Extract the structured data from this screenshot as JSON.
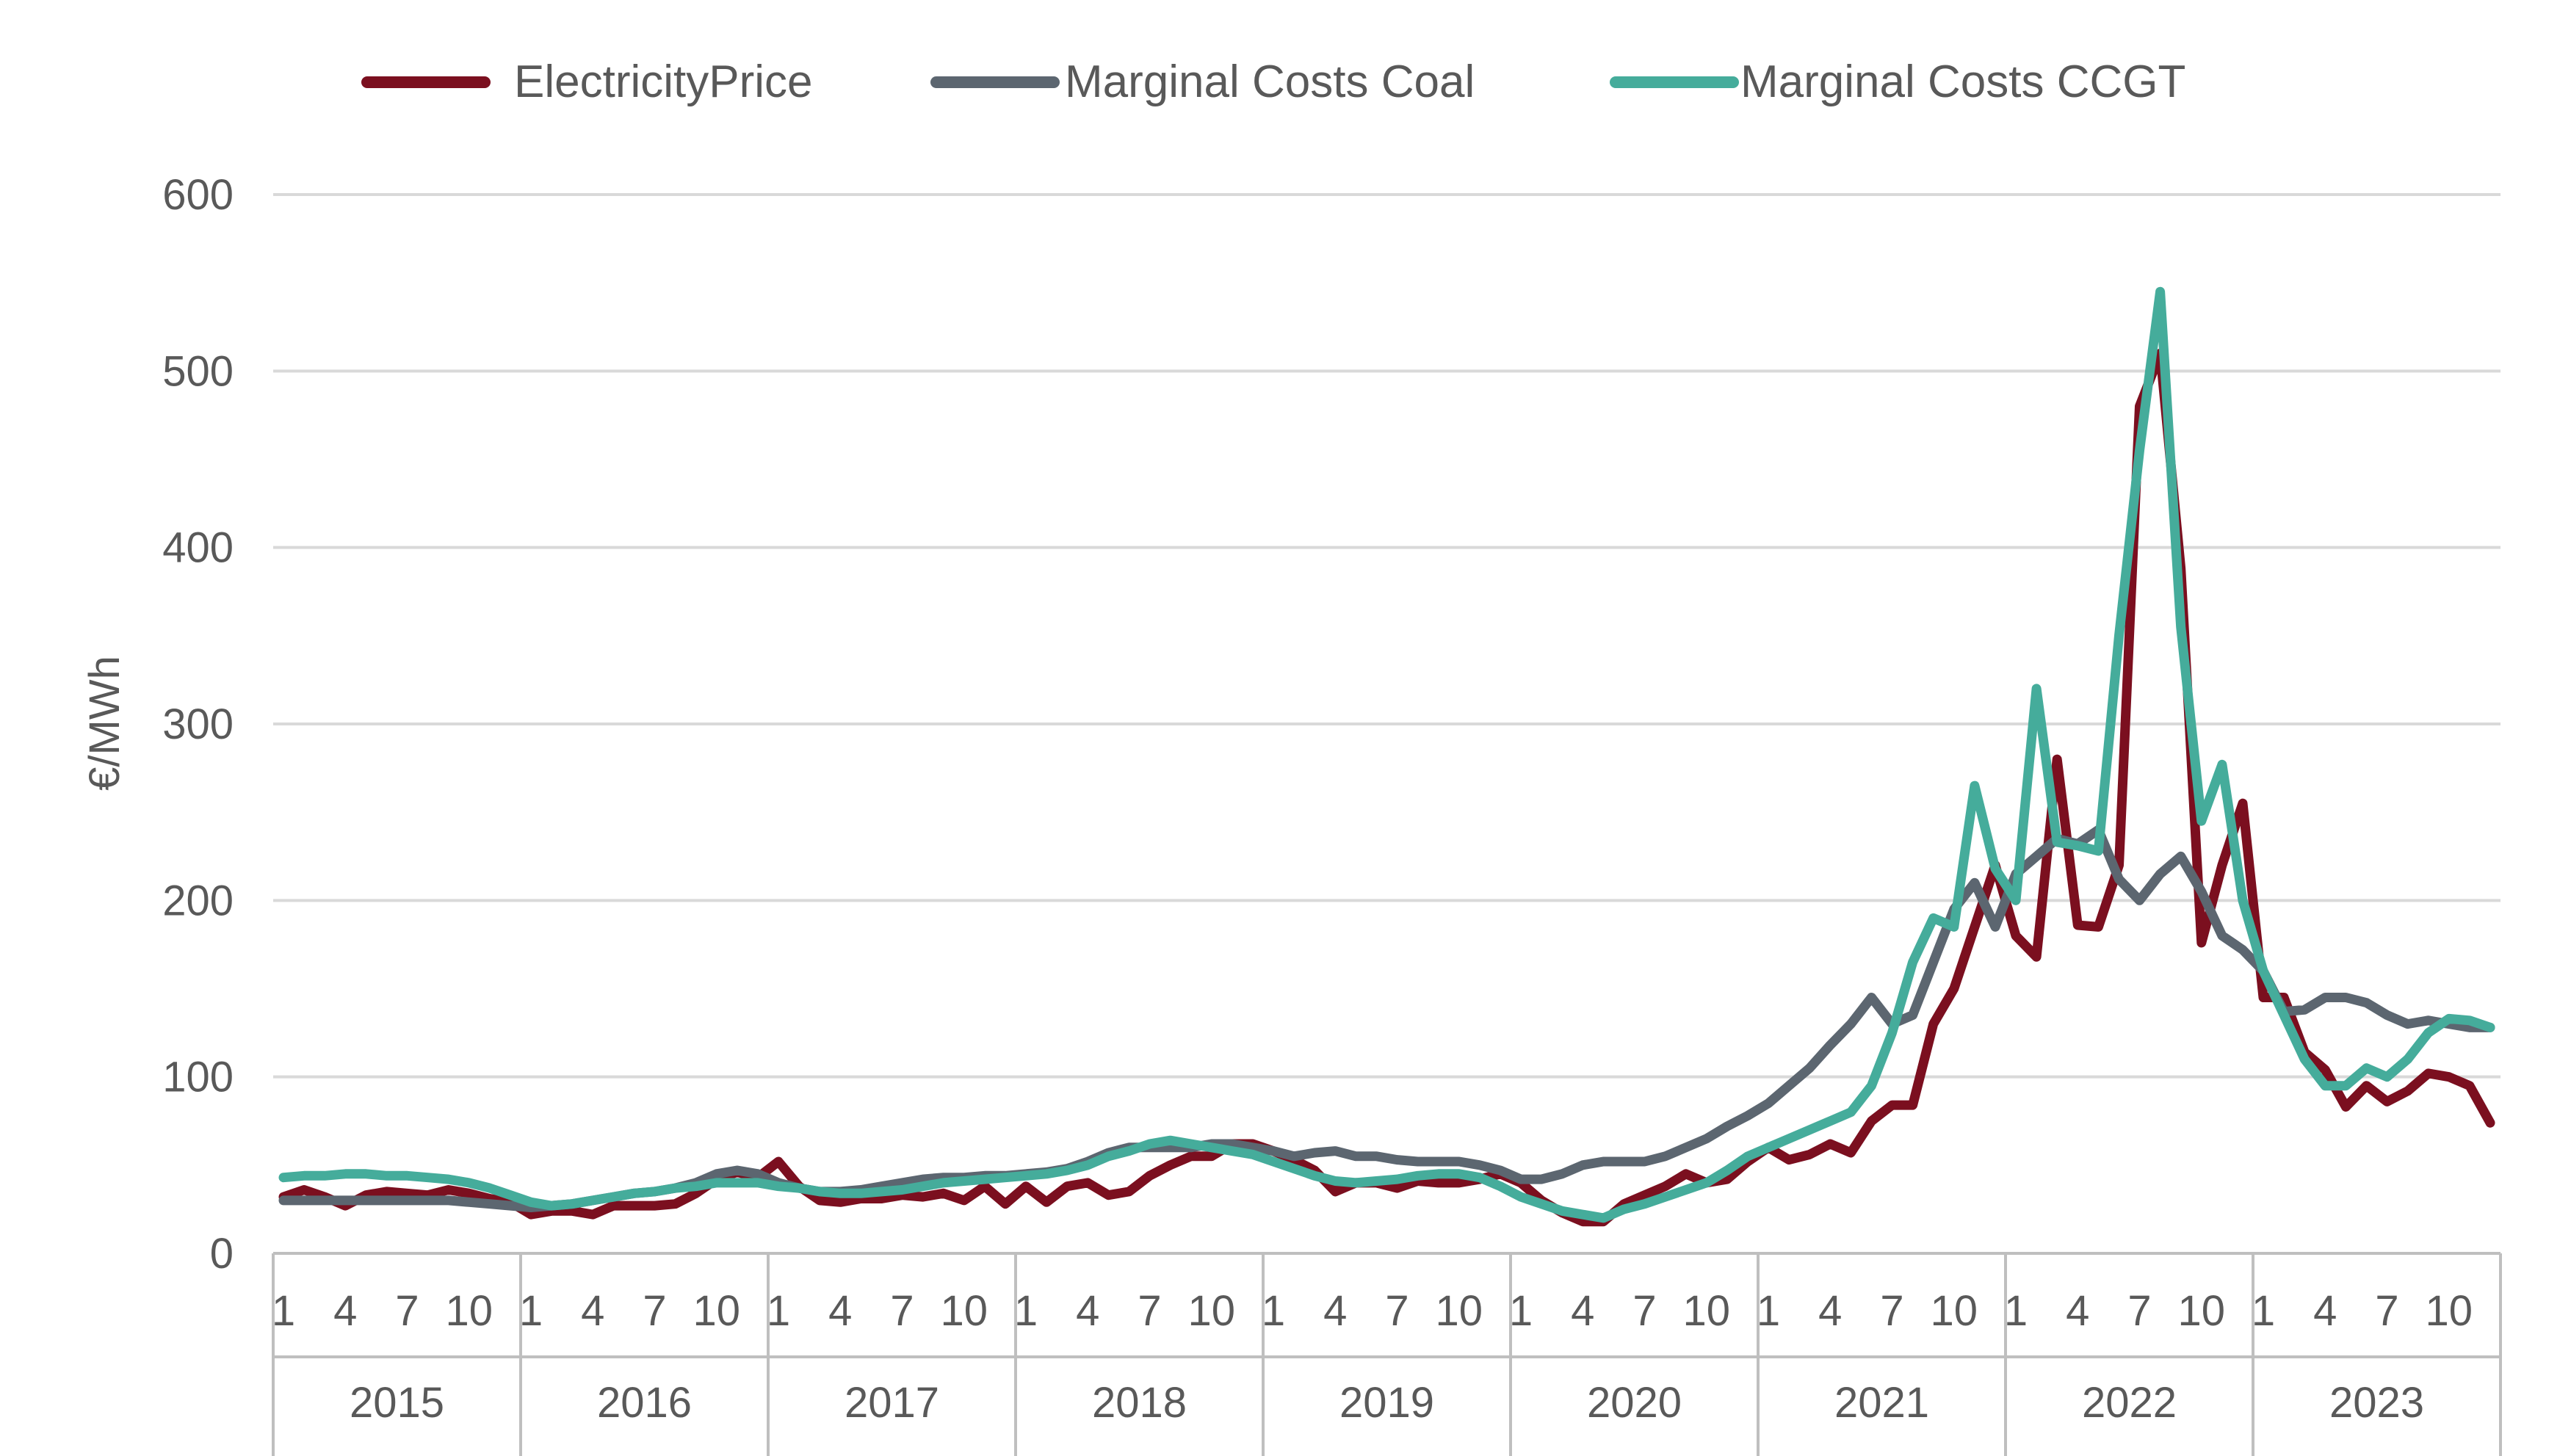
{
  "chart_data": {
    "type": "line",
    "title": "",
    "xlabel": "",
    "ylabel": "€/MWh",
    "ylim": [
      0,
      600
    ],
    "yticks": [
      0,
      100,
      200,
      300,
      400,
      500,
      600
    ],
    "grid": "horizontal",
    "legend_position": "top",
    "years": [
      "2015",
      "2016",
      "2017",
      "2018",
      "2019",
      "2020",
      "2021",
      "2022",
      "2023"
    ],
    "month_ticks": [
      "1",
      "4",
      "7",
      "10"
    ],
    "series": [
      {
        "name": "ElectricityPrice",
        "color": "#7b0f1f",
        "values": [
          32,
          36,
          32,
          27,
          33,
          35,
          34,
          33,
          36,
          34,
          31,
          29,
          22,
          24,
          24,
          22,
          27,
          27,
          27,
          28,
          34,
          42,
          46,
          43,
          52,
          38,
          30,
          29,
          31,
          31,
          33,
          32,
          34,
          30,
          38,
          28,
          38,
          29,
          38,
          40,
          33,
          35,
          44,
          50,
          55,
          55,
          62,
          62,
          58,
          53,
          47,
          35,
          40,
          40,
          37,
          41,
          40,
          40,
          42,
          45,
          40,
          30,
          23,
          18,
          18,
          28,
          33,
          38,
          45,
          40,
          42,
          52,
          60,
          53,
          56,
          62,
          57,
          75,
          84,
          84,
          130,
          150,
          185,
          220,
          180,
          168,
          280,
          186,
          185,
          220,
          480,
          510,
          388,
          176,
          220,
          255,
          145,
          145,
          114,
          104,
          83,
          95,
          86,
          92,
          102,
          100,
          95,
          74
        ]
      },
      {
        "name": "Marginal Costs Coal",
        "color": "#5c6670",
        "values": [
          30,
          30,
          30,
          30,
          30,
          30,
          30,
          30,
          30,
          29,
          28,
          27,
          26,
          27,
          28,
          30,
          32,
          34,
          35,
          37,
          40,
          45,
          47,
          45,
          40,
          37,
          35,
          35,
          36,
          38,
          40,
          42,
          43,
          43,
          44,
          44,
          45,
          46,
          48,
          52,
          57,
          60,
          60,
          60,
          60,
          62,
          62,
          60,
          58,
          55,
          57,
          58,
          55,
          55,
          53,
          52,
          52,
          52,
          50,
          47,
          42,
          42,
          45,
          50,
          52,
          52,
          52,
          55,
          60,
          65,
          72,
          78,
          85,
          95,
          105,
          118,
          130,
          145,
          130,
          135,
          165,
          195,
          210,
          185,
          215,
          225,
          235,
          232,
          240,
          212,
          200,
          215,
          225,
          205,
          180,
          172,
          160,
          137,
          138,
          145,
          145,
          142,
          135,
          130,
          132,
          130,
          128,
          128
        ]
      },
      {
        "name": "Marginal Costs CCGT",
        "color": "#45ac9b",
        "values": [
          43,
          44,
          44,
          45,
          45,
          44,
          44,
          43,
          42,
          40,
          37,
          33,
          29,
          27,
          28,
          30,
          32,
          34,
          35,
          37,
          38,
          40,
          40,
          40,
          38,
          37,
          35,
          34,
          34,
          35,
          36,
          38,
          40,
          41,
          42,
          43,
          44,
          45,
          47,
          50,
          55,
          58,
          62,
          64,
          62,
          60,
          58,
          56,
          52,
          48,
          44,
          41,
          40,
          41,
          42,
          44,
          45,
          45,
          43,
          38,
          32,
          28,
          24,
          22,
          20,
          25,
          28,
          32,
          36,
          40,
          47,
          55,
          60,
          65,
          70,
          75,
          80,
          95,
          125,
          165,
          190,
          185,
          265,
          218,
          200,
          320,
          233,
          231,
          228,
          350,
          455,
          545,
          355,
          245,
          277,
          200,
          160,
          135,
          110,
          95,
          95,
          105,
          100,
          110,
          125,
          133,
          132,
          128
        ]
      }
    ]
  }
}
